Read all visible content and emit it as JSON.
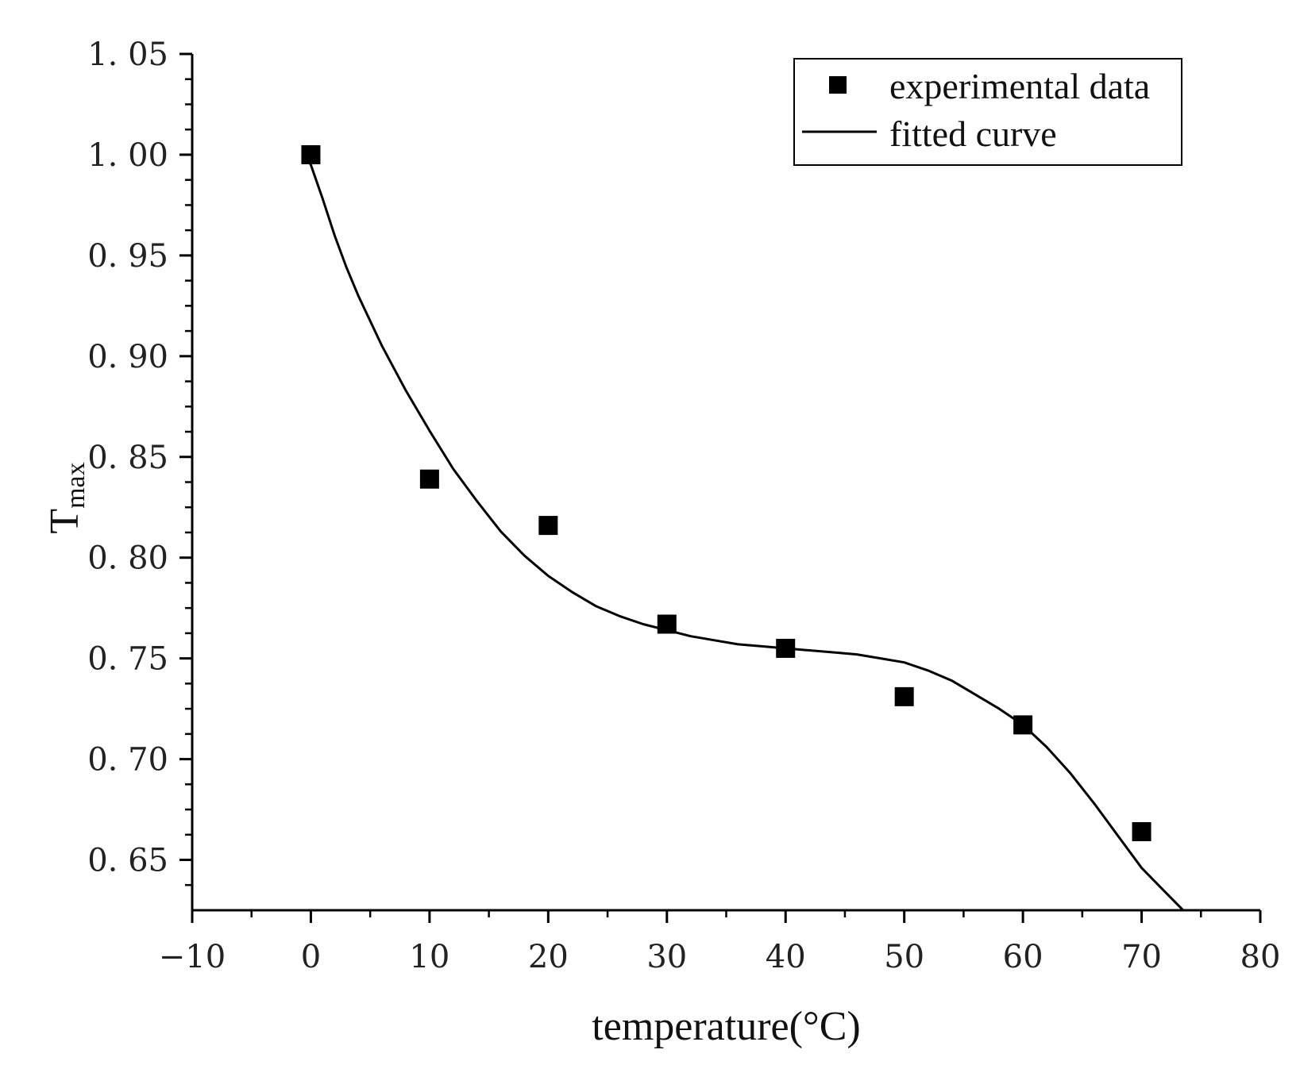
{
  "chart_data": {
    "type": "scatter",
    "title": "",
    "xlabel": "temperature(°C)",
    "ylabel": "T",
    "ylabel_sub": "max",
    "xlim": [
      -10,
      80
    ],
    "ylim": [
      0.625,
      1.05
    ],
    "x_ticks": [
      -10,
      0,
      10,
      20,
      30,
      40,
      50,
      60,
      70,
      80
    ],
    "x_tick_labels": [
      "−10",
      "0",
      "10",
      "20",
      "30",
      "40",
      "50",
      "60",
      "70",
      "80"
    ],
    "y_ticks": [
      0.65,
      0.7,
      0.75,
      0.8,
      0.85,
      0.9,
      0.95,
      1.0,
      1.05
    ],
    "y_tick_labels": [
      "0. 65",
      "0. 70",
      "0. 75",
      "0. 80",
      "0. 85",
      "0. 90",
      "0. 95",
      "1. 00",
      "1. 05"
    ],
    "grid": false,
    "legend_position": "top-right",
    "series": [
      {
        "name": "experimental data",
        "kind": "scatter",
        "marker": "square",
        "color": "#000000",
        "x": [
          0,
          10,
          20,
          30,
          40,
          50,
          60,
          70
        ],
        "y": [
          1.0,
          0.839,
          0.816,
          0.767,
          0.755,
          0.731,
          0.717,
          0.664
        ]
      },
      {
        "name": "fitted curve",
        "kind": "line",
        "color": "#000000",
        "x": [
          -0.5,
          0,
          1,
          2,
          3,
          4,
          6,
          8,
          10,
          12,
          14,
          16,
          18,
          20,
          22,
          24,
          26,
          28,
          30,
          32,
          34,
          36,
          38,
          40,
          42,
          44,
          46,
          48,
          50,
          52,
          54,
          56,
          58,
          60,
          62,
          64,
          66,
          68,
          70,
          72,
          73.5
        ],
        "y": [
          1.0,
          0.995,
          0.978,
          0.96,
          0.944,
          0.93,
          0.905,
          0.883,
          0.863,
          0.844,
          0.828,
          0.813,
          0.801,
          0.791,
          0.783,
          0.776,
          0.771,
          0.767,
          0.764,
          0.761,
          0.759,
          0.757,
          0.756,
          0.755,
          0.754,
          0.753,
          0.752,
          0.75,
          0.748,
          0.744,
          0.739,
          0.732,
          0.725,
          0.717,
          0.706,
          0.693,
          0.678,
          0.662,
          0.646,
          0.634,
          0.625
        ]
      }
    ]
  }
}
